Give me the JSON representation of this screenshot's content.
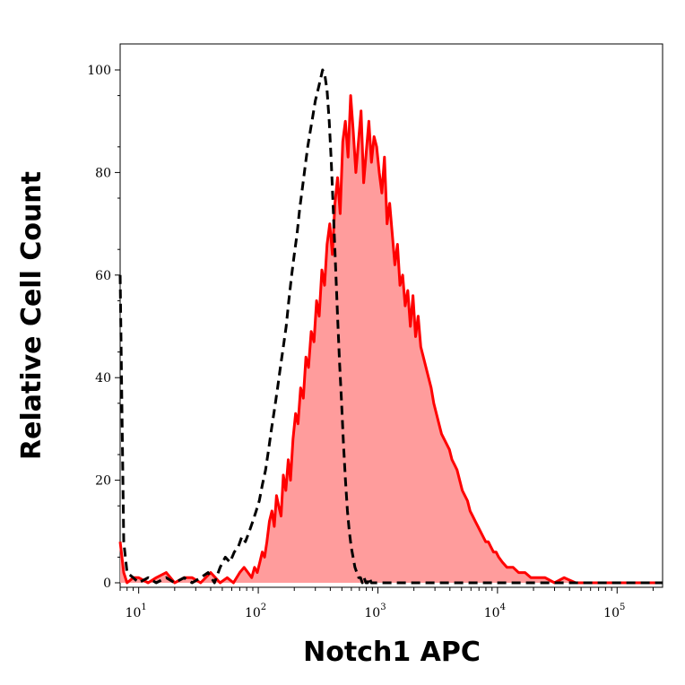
{
  "chart_data": {
    "type": "area",
    "title": "",
    "xlabel": "Notch1 APC",
    "ylabel": "Relative Cell Count",
    "x_scale": "log",
    "xlim": [
      7,
      240000
    ],
    "ylim": [
      0,
      100
    ],
    "x_ticks": [
      {
        "value": 10,
        "base": "10",
        "exp": "1"
      },
      {
        "value": 100,
        "base": "10",
        "exp": "2"
      },
      {
        "value": 1000,
        "base": "10",
        "exp": "3"
      },
      {
        "value": 10000,
        "base": "10",
        "exp": "4"
      },
      {
        "value": 100000,
        "base": "10",
        "exp": "5"
      }
    ],
    "y_ticks": [
      {
        "value": 0,
        "label": "0"
      },
      {
        "value": 20,
        "label": "20"
      },
      {
        "value": 40,
        "label": "40"
      },
      {
        "value": 60,
        "label": "60"
      },
      {
        "value": 80,
        "label": "80"
      },
      {
        "value": 100,
        "label": "100"
      }
    ],
    "grid": false,
    "colors": {
      "stained_line": "#ff0000",
      "stained_fill": "#ff9c9c",
      "control_line": "#000000"
    },
    "series": [
      {
        "style": "filled-solid",
        "x": [
          7,
          7.5,
          8,
          9,
          10,
          12,
          14,
          17,
          20,
          24,
          28,
          33,
          40,
          48,
          55,
          62,
          70,
          76,
          82,
          88,
          93,
          98,
          103,
          108,
          113,
          118,
          124,
          130,
          136,
          142,
          148,
          155,
          162,
          170,
          178,
          186,
          195,
          205,
          215,
          226,
          238,
          250,
          263,
          277,
          292,
          307,
          323,
          340,
          358,
          376,
          396,
          416,
          438,
          460,
          484,
          509,
          535,
          563,
          592,
          622,
          654,
          688,
          723,
          760,
          800,
          841,
          884,
          929,
          977,
          1027,
          1080,
          1135,
          1193,
          1254,
          1318,
          1386,
          1457,
          1531,
          1610,
          1692,
          1779,
          1870,
          1966,
          2067,
          2173,
          2284,
          2401,
          2524,
          2653,
          2789,
          2932,
          3082,
          3240,
          3406,
          3580,
          3764,
          3957,
          4160,
          4373,
          4597,
          4833,
          5080,
          5341,
          5614,
          5902,
          6205,
          6523,
          6857,
          7208,
          7578,
          7966,
          8374,
          8803,
          9254,
          9729,
          10227,
          11000,
          12000,
          13500,
          15000,
          17000,
          19000,
          22000,
          25000,
          30000,
          36000,
          45000,
          55000,
          70000,
          90000,
          120000,
          160000,
          240000
        ],
        "y": [
          8,
          2,
          0,
          1,
          1,
          0,
          1,
          2,
          0,
          1,
          1,
          0,
          2,
          0,
          1,
          0,
          2,
          3,
          2,
          1,
          3,
          2,
          4,
          6,
          5,
          8,
          12,
          14,
          11,
          17,
          15,
          13,
          21,
          18,
          24,
          20,
          28,
          33,
          31,
          38,
          36,
          44,
          42,
          49,
          47,
          55,
          52,
          61,
          58,
          66,
          70,
          64,
          74,
          79,
          72,
          86,
          90,
          83,
          95,
          88,
          80,
          86,
          92,
          78,
          84,
          90,
          82,
          87,
          85,
          80,
          76,
          83,
          70,
          74,
          68,
          62,
          66,
          58,
          60,
          54,
          57,
          50,
          56,
          48,
          52,
          46,
          44,
          42,
          40,
          38,
          35,
          33,
          31,
          29,
          28,
          27,
          26,
          24,
          23,
          22,
          20,
          18,
          17,
          16,
          14,
          13,
          12,
          11,
          10,
          9,
          8,
          8,
          7,
          6,
          6,
          5,
          4,
          3,
          3,
          2,
          2,
          1,
          1,
          1,
          0,
          1,
          0,
          0,
          0,
          0,
          0,
          0,
          0
        ]
      },
      {
        "style": "dashed",
        "x": [
          7,
          7.5,
          8,
          9,
          10,
          12,
          14,
          17,
          20,
          24,
          28,
          33,
          38,
          43,
          48,
          53,
          58,
          63,
          68,
          73,
          78,
          84,
          90,
          96,
          102,
          108,
          115,
          122,
          129,
          137,
          145,
          153,
          162,
          171,
          180,
          190,
          200,
          211,
          222,
          234,
          246,
          259,
          272,
          286,
          300,
          315,
          330,
          345,
          360,
          376,
          392,
          408,
          425,
          442,
          460,
          478,
          497,
          516,
          536,
          556,
          577,
          598,
          620,
          643,
          667,
          691,
          716,
          741,
          767,
          794,
          822,
          850,
          880,
          910,
          1000,
          1200,
          1500,
          2000,
          3000,
          5000,
          8000,
          12000,
          20000,
          40000,
          100000,
          240000
        ],
        "y": [
          60,
          8,
          2,
          1,
          0,
          1,
          0,
          1,
          0,
          1,
          0,
          1,
          2,
          0,
          3,
          5,
          4,
          6,
          7,
          9,
          8,
          10,
          12,
          14,
          16,
          19,
          22,
          26,
          30,
          34,
          38,
          42,
          46,
          50,
          55,
          60,
          64,
          68,
          73,
          77,
          81,
          85,
          88,
          91,
          94,
          96,
          98,
          100,
          99,
          96,
          90,
          82,
          72,
          62,
          52,
          43,
          35,
          27,
          20,
          14,
          10,
          7,
          5,
          3,
          2,
          1,
          1,
          0,
          1,
          0,
          0,
          1,
          0,
          0,
          0,
          0,
          0,
          0,
          0,
          0,
          0,
          0,
          0,
          0,
          0,
          0
        ]
      }
    ]
  }
}
